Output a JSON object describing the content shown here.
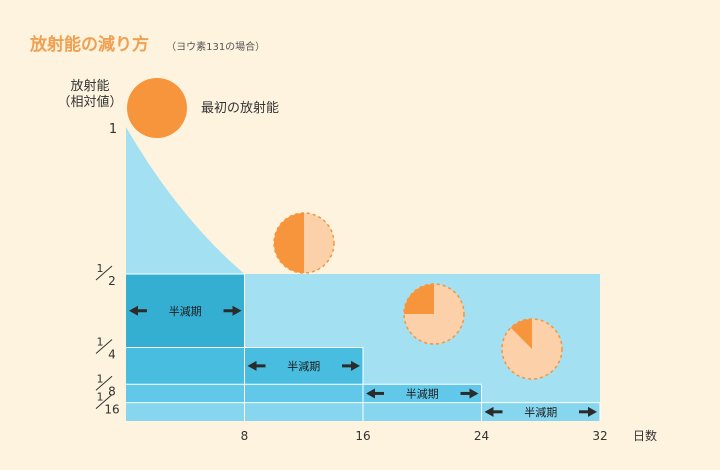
{
  "header": {
    "title": "放射能の減り方",
    "subtitle": "（ヨウ素131の場合）"
  },
  "chart_data": {
    "type": "area",
    "title": "放射能の減り方",
    "subtitle": "（ヨウ素131の場合）",
    "xlabel": "日数",
    "ylabel_lines": [
      "放射能",
      "（相対値）"
    ],
    "x_ticks": [
      8,
      16,
      24,
      32
    ],
    "y_ticks": [
      {
        "value": 1,
        "label": "1"
      },
      {
        "value": 0.5,
        "num": "1",
        "den": "2"
      },
      {
        "value": 0.25,
        "num": "1",
        "den": "4"
      },
      {
        "value": 0.125,
        "num": "1",
        "den": "8"
      },
      {
        "value": 0.0625,
        "num": "1",
        "den": "16"
      }
    ],
    "xlim": [
      0,
      32
    ],
    "ylim": [
      0,
      1
    ],
    "half_life_days": 8,
    "series": [
      {
        "x": [
          0,
          8,
          16,
          24,
          32
        ],
        "values": [
          1,
          0.5,
          0.25,
          0.125,
          0.0625
        ]
      }
    ],
    "half_life_bands": [
      {
        "x0": 0,
        "x1": 8,
        "y": 0.5,
        "label": "半減期"
      },
      {
        "x0": 8,
        "x1": 16,
        "y": 0.25,
        "label": "半減期"
      },
      {
        "x0": 16,
        "x1": 24,
        "y": 0.125,
        "label": "半減期"
      },
      {
        "x0": 24,
        "x1": 32,
        "y": 0.0625,
        "label": "半減期"
      }
    ],
    "pie_markers": [
      {
        "day": 0,
        "fraction": 1,
        "label": "最初の放射能"
      },
      {
        "day": 8,
        "fraction": 0.5
      },
      {
        "day": 16,
        "fraction": 0.25
      },
      {
        "day": 24,
        "fraction": 0.125
      }
    ],
    "colors": {
      "background": "#fdf3df",
      "curve_fill": "#a3e0f2",
      "band_dark": "#34afd1",
      "band_mid": "#49bde0",
      "band_light": "#62c8ea",
      "band_lightest": "#86d6f0",
      "pie_fill": "#f7953c",
      "pie_ghost": "#fcd0a8",
      "pie_dash": "#f7953c",
      "title": "#f0a050",
      "arrow": "#2b2b2b",
      "text": "#333333"
    }
  }
}
